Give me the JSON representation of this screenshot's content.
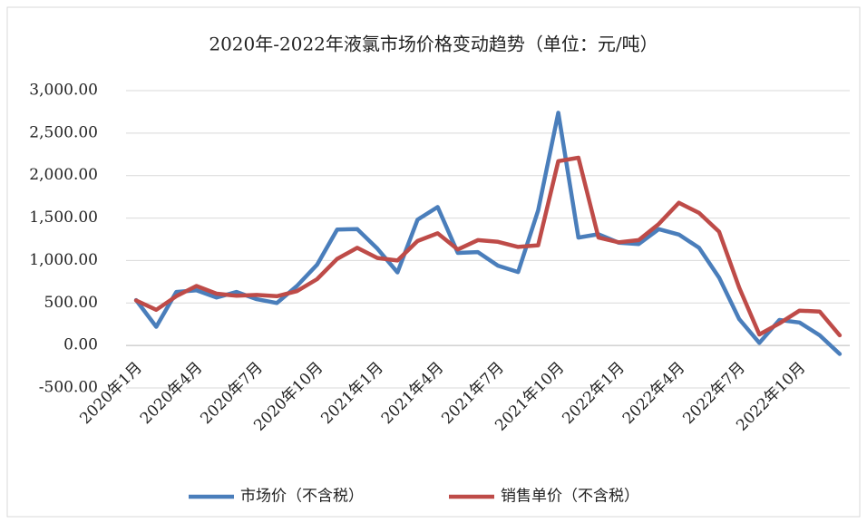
{
  "chart_data": {
    "type": "line",
    "title": "2020年-2022年液氯市场价格变动趋势（单位：元/吨）",
    "categories": [
      "2020年1月",
      null,
      null,
      "2020年4月",
      null,
      null,
      "2020年7月",
      null,
      null,
      "2020年10月",
      null,
      null,
      "2021年1月",
      null,
      null,
      "2021年4月",
      null,
      null,
      "2021年7月",
      null,
      null,
      "2021年10月",
      null,
      null,
      "2022年1月",
      null,
      null,
      "2022年4月",
      null,
      null,
      "2022年7月",
      null,
      null,
      "2022年10月",
      null,
      null
    ],
    "series": [
      {
        "name": "市场价（不含税）",
        "color": "#4a7ebb",
        "values": [
          534,
          220,
          630,
          650,
          565,
          630,
          545,
          500,
          700,
          950,
          1365,
          1370,
          1140,
          860,
          1480,
          1630,
          1090,
          1100,
          940,
          865,
          1590,
          2740,
          1270,
          1310,
          1210,
          1195,
          1370,
          1305,
          1150,
          800,
          310,
          30,
          300,
          270,
          120,
          -100
        ]
      },
      {
        "name": "销售单价（不含税）",
        "color": "#be4b48",
        "values": [
          530,
          420,
          580,
          700,
          610,
          585,
          595,
          580,
          640,
          780,
          1020,
          1150,
          1030,
          1000,
          1230,
          1320,
          1130,
          1240,
          1220,
          1160,
          1180,
          2170,
          2210,
          1270,
          1215,
          1240,
          1430,
          1680,
          1560,
          1340,
          680,
          130,
          260,
          410,
          400,
          120
        ]
      }
    ],
    "ylim": [
      -500,
      3000
    ],
    "yticks": [
      {
        "value": -500,
        "label": "-500.00"
      },
      {
        "value": 0,
        "label": "0.00"
      },
      {
        "value": 500,
        "label": "500.00"
      },
      {
        "value": 1000,
        "label": "1,000.00"
      },
      {
        "value": 1500,
        "label": "1,500.00"
      },
      {
        "value": 2000,
        "label": "2,000.00"
      },
      {
        "value": 2500,
        "label": "2,500.00"
      },
      {
        "value": 3000,
        "label": "3,000.00"
      }
    ],
    "grid": true,
    "legend": "bottom"
  }
}
